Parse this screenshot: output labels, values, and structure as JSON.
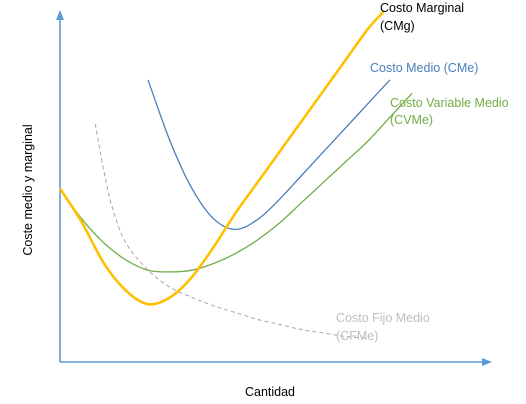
{
  "chart_data": {
    "type": "line",
    "title": "",
    "xlabel": "Cantidad",
    "ylabel": "Coste medio y marginal",
    "xlim": [
      0,
      100
    ],
    "ylim": [
      0,
      100
    ],
    "grid": false,
    "legend": "inline labels at curve ends",
    "series": [
      {
        "id": "cmg",
        "name": "Costo Marginal (CMg)",
        "label_lines": [
          "Costo Marginal",
          "(CMg)"
        ],
        "color": "#FFC000",
        "style": "solid",
        "x": [
          0,
          5,
          10,
          15,
          20,
          25,
          30,
          35,
          40,
          45,
          50,
          55,
          60,
          65,
          70,
          73.5
        ],
        "y": [
          51,
          41,
          29,
          21,
          17,
          19,
          25,
          34,
          44,
          53,
          62,
          71,
          80,
          89,
          98,
          103
        ]
      },
      {
        "id": "cme",
        "name": "Costo Medio (CMe)",
        "label_lines": [
          "Costo Medio (CMe)"
        ],
        "color": "#4A7EBB",
        "style": "solid",
        "x": [
          20,
          25,
          30,
          35,
          40,
          45,
          50,
          55,
          60,
          65,
          70,
          75
        ],
        "y": [
          83,
          65,
          51,
          42,
          39,
          42,
          48,
          55,
          62,
          69,
          76,
          83
        ]
      },
      {
        "id": "cvme",
        "name": "Costo Variable Medio (CVMe)",
        "label_lines": [
          "Costo Variable Medio",
          "(CVMe)"
        ],
        "color": "#70AD47",
        "style": "solid",
        "x": [
          0,
          5,
          10,
          15,
          20,
          25,
          30,
          35,
          40,
          45,
          50,
          55,
          60,
          65,
          70,
          75,
          80
        ],
        "y": [
          51,
          42,
          35,
          30,
          27,
          26.5,
          27,
          29,
          32,
          36,
          41,
          47,
          53,
          59,
          65,
          72,
          79
        ]
      },
      {
        "id": "cfme",
        "name": "Costo Fijo Medio (CFMe)",
        "label_lines": [
          "Costo Fijo Medio",
          "(CFMe)"
        ],
        "color": "#A6A6A6",
        "style": "dashed",
        "x": [
          8,
          10,
          12,
          15,
          20,
          25,
          30,
          35,
          40,
          45,
          50,
          55,
          60,
          65,
          70
        ],
        "y": [
          70,
          56,
          45,
          35,
          27,
          22,
          19,
          16.5,
          14.5,
          12.5,
          11,
          9.5,
          8.5,
          7.5,
          7
        ]
      }
    ]
  }
}
